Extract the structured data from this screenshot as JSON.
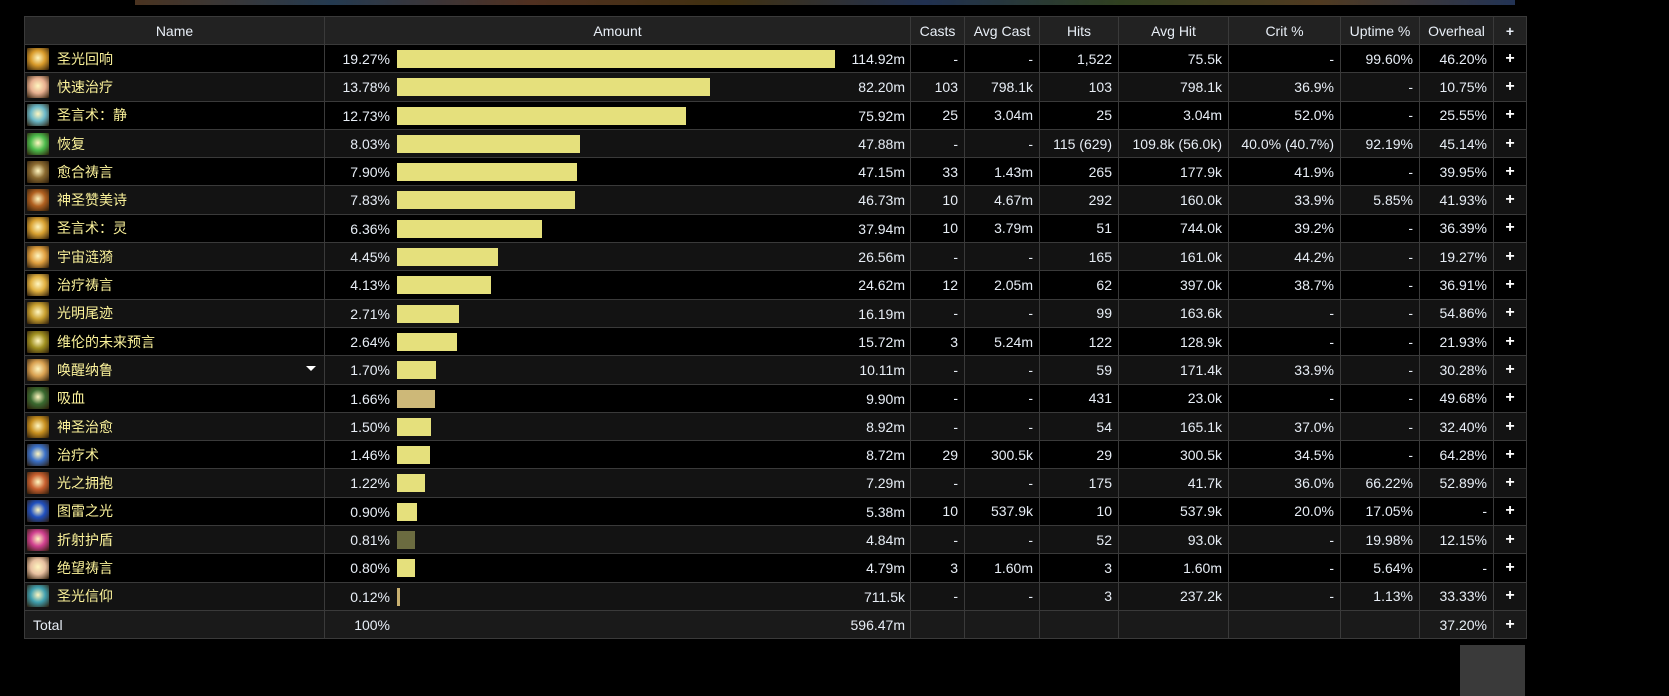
{
  "headers": {
    "name": "Name",
    "amount": "Amount",
    "casts": "Casts",
    "avg_cast": "Avg Cast",
    "hits": "Hits",
    "avg_hit": "Avg Hit",
    "crit": "Crit %",
    "uptime": "Uptime %",
    "overheal": "Overheal",
    "plus": "+"
  },
  "colors": {
    "bar": "#e5e07c",
    "name_text": "#fbf29a"
  },
  "rows": [
    {
      "name": "圣光回响",
      "pct": "19.27%",
      "pct_value": 19.27,
      "amount": "114.92m",
      "casts": "-",
      "avg_cast": "-",
      "hits": "1,522",
      "avg_hit": "75.5k",
      "crit": "-",
      "uptime": "99.60%",
      "overheal": "46.20%",
      "icon": "#d89a2a",
      "bar_color": "#e5e07c"
    },
    {
      "name": "快速治疗",
      "pct": "13.78%",
      "pct_value": 13.78,
      "amount": "82.20m",
      "casts": "103",
      "avg_cast": "798.1k",
      "hits": "103",
      "avg_hit": "798.1k",
      "crit": "36.9%",
      "uptime": "-",
      "overheal": "10.75%",
      "icon": "#e8b090",
      "bar_color": "#e5e07c"
    },
    {
      "name": "圣言术：静",
      "pct": "12.73%",
      "pct_value": 12.73,
      "amount": "75.92m",
      "casts": "25",
      "avg_cast": "3.04m",
      "hits": "25",
      "avg_hit": "3.04m",
      "crit": "52.0%",
      "uptime": "-",
      "overheal": "25.55%",
      "icon": "#6ab8c8",
      "bar_color": "#e5e07c"
    },
    {
      "name": "恢复",
      "pct": "8.03%",
      "pct_value": 8.03,
      "amount": "47.88m",
      "casts": "-",
      "avg_cast": "-",
      "hits": "115 (629)",
      "avg_hit": "109.8k (56.0k)",
      "crit": "40.0% (40.7%)",
      "uptime": "92.19%",
      "overheal": "45.14%",
      "icon": "#4cbc4c",
      "bar_color": "#e5e07c"
    },
    {
      "name": "愈合祷言",
      "pct": "7.90%",
      "pct_value": 7.9,
      "amount": "47.15m",
      "casts": "33",
      "avg_cast": "1.43m",
      "hits": "265",
      "avg_hit": "177.9k",
      "crit": "41.9%",
      "uptime": "-",
      "overheal": "39.95%",
      "icon": "#8a6a30",
      "bar_color": "#e5e07c"
    },
    {
      "name": "神圣赞美诗",
      "pct": "7.83%",
      "pct_value": 7.83,
      "amount": "46.73m",
      "casts": "10",
      "avg_cast": "4.67m",
      "hits": "292",
      "avg_hit": "160.0k",
      "crit": "33.9%",
      "uptime": "5.85%",
      "overheal": "41.93%",
      "icon": "#b06020",
      "bar_color": "#e5e07c"
    },
    {
      "name": "圣言术：灵",
      "pct": "6.36%",
      "pct_value": 6.36,
      "amount": "37.94m",
      "casts": "10",
      "avg_cast": "3.79m",
      "hits": "51",
      "avg_hit": "744.0k",
      "crit": "39.2%",
      "uptime": "-",
      "overheal": "36.39%",
      "icon": "#d8a030",
      "bar_color": "#e5e07c"
    },
    {
      "name": "宇宙涟漪",
      "pct": "4.45%",
      "pct_value": 4.45,
      "amount": "26.56m",
      "casts": "-",
      "avg_cast": "-",
      "hits": "165",
      "avg_hit": "161.0k",
      "crit": "44.2%",
      "uptime": "-",
      "overheal": "19.27%",
      "icon": "#e0a040",
      "bar_color": "#e5e07c"
    },
    {
      "name": "治疗祷言",
      "pct": "4.13%",
      "pct_value": 4.13,
      "amount": "24.62m",
      "casts": "12",
      "avg_cast": "2.05m",
      "hits": "62",
      "avg_hit": "397.0k",
      "crit": "38.7%",
      "uptime": "-",
      "overheal": "36.91%",
      "icon": "#e0b040",
      "bar_color": "#e5e07c"
    },
    {
      "name": "光明尾迹",
      "pct": "2.71%",
      "pct_value": 2.71,
      "amount": "16.19m",
      "casts": "-",
      "avg_cast": "-",
      "hits": "99",
      "avg_hit": "163.6k",
      "crit": "-",
      "uptime": "-",
      "overheal": "54.86%",
      "icon": "#c8a030",
      "bar_color": "#e5e07c"
    },
    {
      "name": "维伦的未来预言",
      "pct": "2.64%",
      "pct_value": 2.64,
      "amount": "15.72m",
      "casts": "3",
      "avg_cast": "5.24m",
      "hits": "122",
      "avg_hit": "128.9k",
      "crit": "-",
      "uptime": "-",
      "overheal": "21.93%",
      "icon": "#a09020",
      "bar_color": "#e5e07c"
    },
    {
      "name": "唤醒纳鲁",
      "pct": "1.70%",
      "pct_value": 1.7,
      "amount": "10.11m",
      "casts": "-",
      "avg_cast": "-",
      "hits": "59",
      "avg_hit": "171.4k",
      "crit": "33.9%",
      "uptime": "-",
      "overheal": "30.28%",
      "icon": "#d8a050",
      "bar_color": "#e5e07c",
      "expandable": true
    },
    {
      "name": "吸血",
      "pct": "1.66%",
      "pct_value": 1.66,
      "amount": "9.90m",
      "casts": "-",
      "avg_cast": "-",
      "hits": "431",
      "avg_hit": "23.0k",
      "crit": "-",
      "uptime": "-",
      "overheal": "49.68%",
      "icon": "#3a6a30",
      "bar_color": "#cdb878"
    },
    {
      "name": "神圣治愈",
      "pct": "1.50%",
      "pct_value": 1.5,
      "amount": "8.92m",
      "casts": "-",
      "avg_cast": "-",
      "hits": "54",
      "avg_hit": "165.1k",
      "crit": "37.0%",
      "uptime": "-",
      "overheal": "32.40%",
      "icon": "#c89020",
      "bar_color": "#e5e07c"
    },
    {
      "name": "治疗术",
      "pct": "1.46%",
      "pct_value": 1.46,
      "amount": "8.72m",
      "casts": "29",
      "avg_cast": "300.5k",
      "hits": "29",
      "avg_hit": "300.5k",
      "crit": "34.5%",
      "uptime": "-",
      "overheal": "64.28%",
      "icon": "#3a70c8",
      "bar_color": "#e5e07c"
    },
    {
      "name": "光之拥抱",
      "pct": "1.22%",
      "pct_value": 1.22,
      "amount": "7.29m",
      "casts": "-",
      "avg_cast": "-",
      "hits": "175",
      "avg_hit": "41.7k",
      "crit": "36.0%",
      "uptime": "66.22%",
      "overheal": "52.89%",
      "icon": "#c86030",
      "bar_color": "#e5e07c"
    },
    {
      "name": "图雷之光",
      "pct": "0.90%",
      "pct_value": 0.9,
      "amount": "5.38m",
      "casts": "10",
      "avg_cast": "537.9k",
      "hits": "10",
      "avg_hit": "537.9k",
      "crit": "20.0%",
      "uptime": "17.05%",
      "overheal": "-",
      "icon": "#2050c0",
      "bar_color": "#e5e07c"
    },
    {
      "name": "折射护盾",
      "pct": "0.81%",
      "pct_value": 0.81,
      "amount": "4.84m",
      "casts": "-",
      "avg_cast": "-",
      "hits": "52",
      "avg_hit": "93.0k",
      "crit": "-",
      "uptime": "19.98%",
      "overheal": "12.15%",
      "icon": "#d04090",
      "bar_color": "#6b6b40"
    },
    {
      "name": "绝望祷言",
      "pct": "0.80%",
      "pct_value": 0.8,
      "amount": "4.79m",
      "casts": "3",
      "avg_cast": "1.60m",
      "hits": "3",
      "avg_hit": "1.60m",
      "crit": "-",
      "uptime": "5.64%",
      "overheal": "-",
      "icon": "#e8c0a0",
      "bar_color": "#e5e07c"
    },
    {
      "name": "圣光信仰",
      "pct": "0.12%",
      "pct_value": 0.12,
      "amount": "711.5k",
      "casts": "-",
      "avg_cast": "-",
      "hits": "3",
      "avg_hit": "237.2k",
      "crit": "-",
      "uptime": "1.13%",
      "overheal": "33.33%",
      "icon": "#40a0b0",
      "bar_color": "#c8b070"
    }
  ],
  "total": {
    "label": "Total",
    "pct": "100%",
    "amount": "596.47m",
    "overheal": "37.20%"
  }
}
